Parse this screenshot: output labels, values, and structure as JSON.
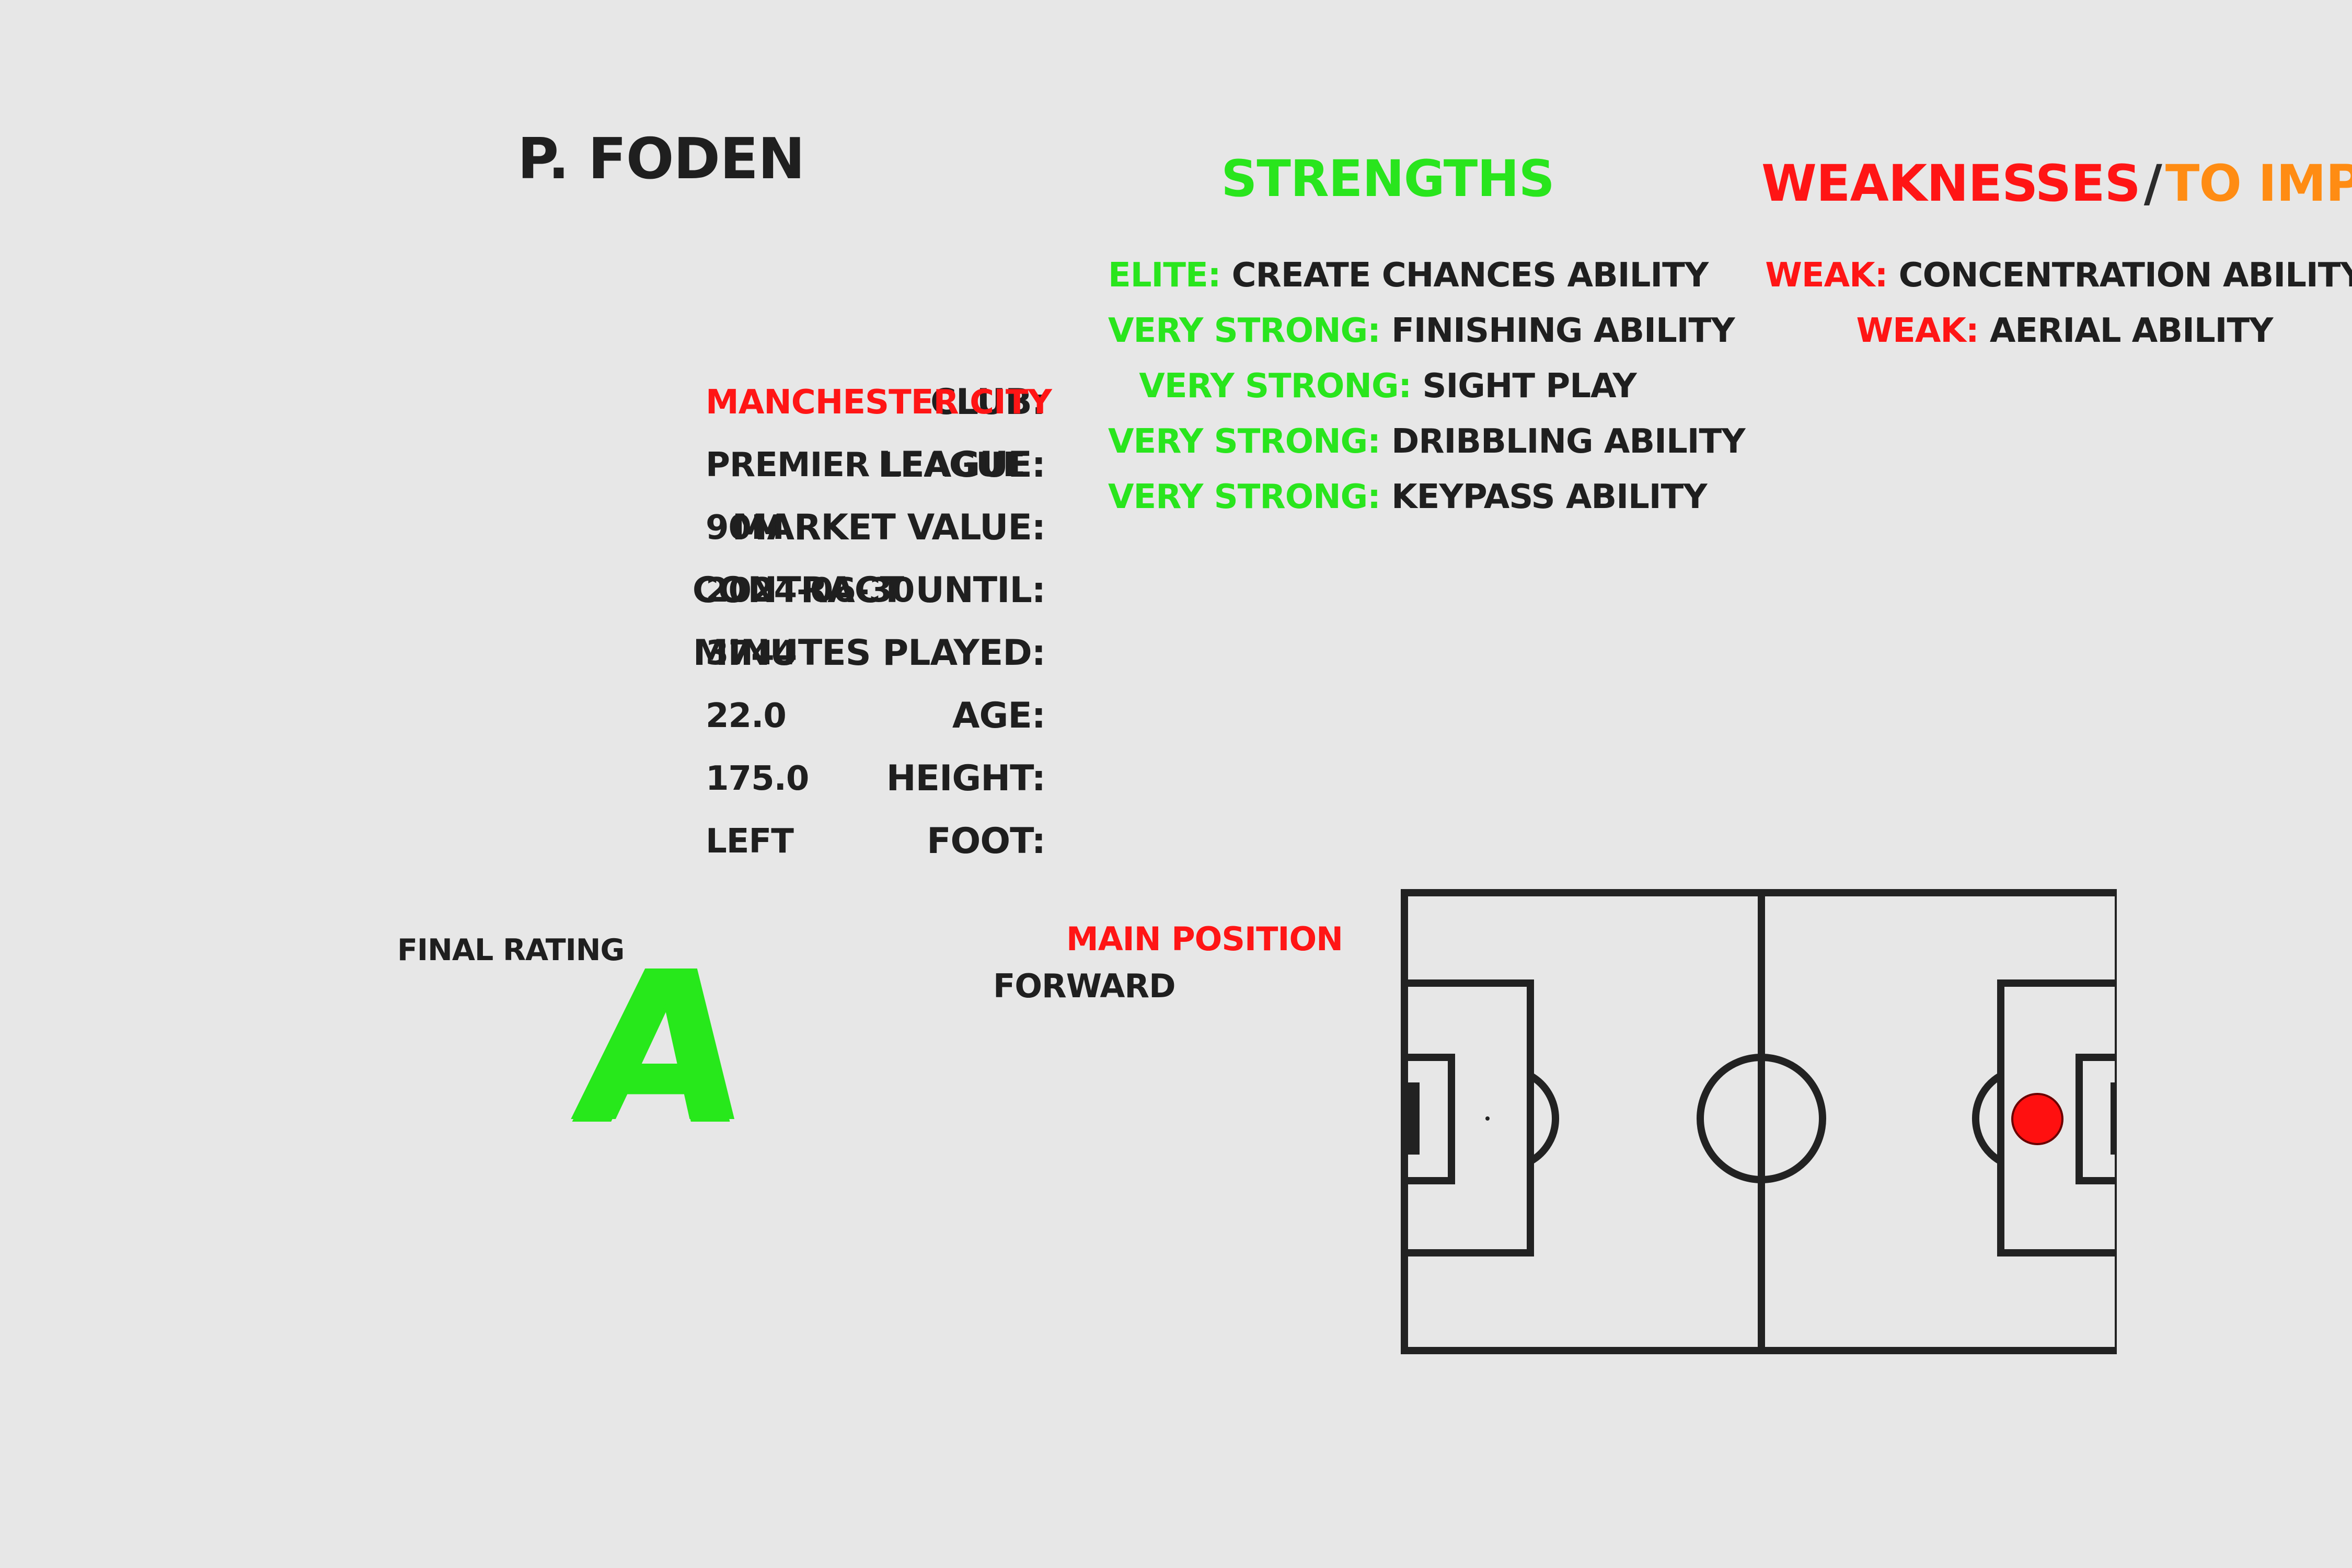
{
  "player": {
    "name": "P. FODEN"
  },
  "info": {
    "club_label": "CLUB:",
    "club_value": "MANCHESTER CITY",
    "league_label": "LEAGUE:",
    "league_value": "PREMIER LEAGUE",
    "market_value_label": "MARKET VALUE:",
    "market_value_value": "90M",
    "contract_label": "CONTRACT UNTIL:",
    "contract_value": "2024-06-30",
    "minutes_label": "MINUTES PLAYED:",
    "minutes_value": "3744",
    "age_label": "AGE:",
    "age_value": "22.0",
    "height_label": "HEIGHT:",
    "height_value": "175.0",
    "foot_label": "FOOT:",
    "foot_value": "LEFT"
  },
  "strengths": {
    "title": "STRENGTHS",
    "items": [
      {
        "level": "ELITE:",
        "text": "CREATE CHANCES ABILITY"
      },
      {
        "level": "VERY STRONG:",
        "text": "FINISHING ABILITY"
      },
      {
        "level": "VERY STRONG:",
        "text": "SIGHT PLAY"
      },
      {
        "level": "VERY STRONG:",
        "text": "DRIBBLING ABILITY"
      },
      {
        "level": "VERY STRONG:",
        "text": "KEYPASS ABILITY"
      }
    ]
  },
  "weaknesses": {
    "title_part_1": "WEAKNESSES",
    "separator": "/",
    "title_part_2": "TO IMPROVE",
    "items": [
      {
        "level": "WEAK:",
        "text": "CONCENTRATION ABILITY"
      },
      {
        "level": "WEAK:",
        "text": "AERIAL ABILITY"
      }
    ]
  },
  "rating": {
    "label": "FINAL RATING",
    "value": "A"
  },
  "position": {
    "label": "MAIN POSITION",
    "value": "FORWARD"
  },
  "colors": {
    "background": "#e7e7e7",
    "text": "#1f1f1f",
    "red": "#ff1515",
    "green": "#29e51d",
    "orange": "#ff8c13",
    "pitch_line": "#222222",
    "position_marker": "#ff1010"
  }
}
